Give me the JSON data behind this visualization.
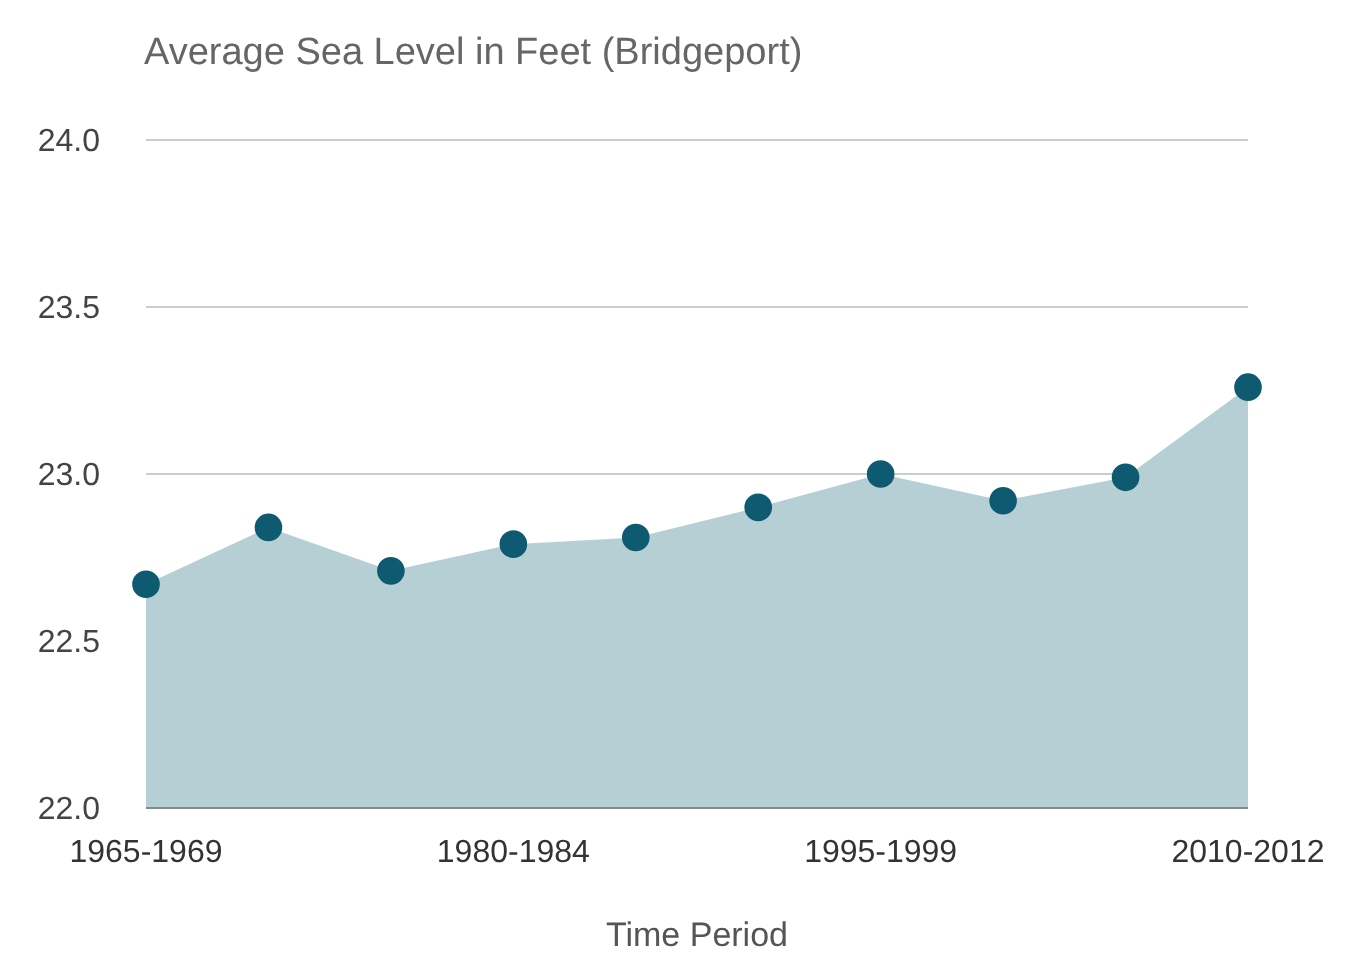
{
  "chart_data": {
    "type": "area",
    "title": "Average Sea Level in Feet (Bridgeport)",
    "xlabel": "Time Period",
    "categories": [
      "1965-1969",
      null,
      null,
      "1980-1984",
      null,
      null,
      "1995-1999",
      null,
      null,
      "2010-2012"
    ],
    "series": [
      {
        "color": "#b5cfd5",
        "values": [
          22.67,
          22.84,
          22.71,
          22.79,
          22.81,
          22.9,
          23.0,
          22.92,
          22.99,
          23.26
        ]
      },
      {
        "type": "scatter",
        "marker": "circle",
        "color": "#0e5a70",
        "values": [
          22.67,
          22.84,
          22.71,
          22.79,
          22.81,
          22.9,
          23.0,
          22.92,
          22.99,
          23.26
        ]
      }
    ],
    "ylim": [
      22.0,
      24.0
    ],
    "yticks": [
      {
        "value": 22.0,
        "label": "22.0"
      },
      {
        "value": 22.5,
        "label": "22.5"
      },
      {
        "value": 23.0,
        "label": "23.0"
      },
      {
        "value": 23.5,
        "label": "23.5"
      },
      {
        "value": 24.0,
        "label": "24.0"
      }
    ],
    "grid": "y"
  }
}
